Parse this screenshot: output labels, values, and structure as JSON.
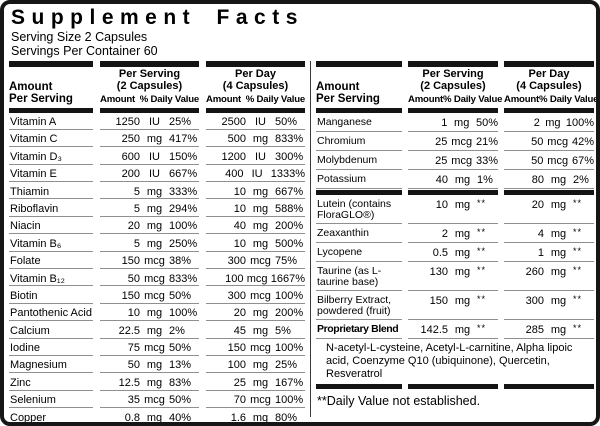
{
  "title": "Supplement Facts",
  "serving_size": "Serving Size 2 Capsules",
  "servings_per_container": "Servings Per Container 60",
  "colors": {
    "background": "#ffffff",
    "text": "#000000",
    "header_bar": "#141414",
    "row_separator": "#8f8f8f",
    "border": "#161616"
  },
  "headers": {
    "amount": "Amount",
    "per_serving": "Per Serving",
    "serving_capsules": "(2 Capsules)",
    "per_day": "Per Day",
    "day_capsules": "(4 Capsules)",
    "sub_amount": "Amount",
    "sub_daily_value": "% Daily Value"
  },
  "left_table": {
    "rows": [
      {
        "name": "Vitamin A",
        "ps_amount": "1250",
        "ps_unit": "IU",
        "ps_dv": "25%",
        "pd_amount": "2500",
        "pd_unit": "IU",
        "pd_dv": "50%"
      },
      {
        "name": "Vitamin C",
        "ps_amount": "250",
        "ps_unit": "mg",
        "ps_dv": "417%",
        "pd_amount": "500",
        "pd_unit": "mg",
        "pd_dv": "833%"
      },
      {
        "name": "Vitamin D₃",
        "ps_amount": "600",
        "ps_unit": "IU",
        "ps_dv": "150%",
        "pd_amount": "1200",
        "pd_unit": "IU",
        "pd_dv": "300%"
      },
      {
        "name": "Vitamin E",
        "ps_amount": "200",
        "ps_unit": "IU",
        "ps_dv": "667%",
        "pd_amount": "400",
        "pd_unit": "IU",
        "pd_dv": "1333%"
      },
      {
        "name": "Thiamin",
        "ps_amount": "5",
        "ps_unit": "mg",
        "ps_dv": "333%",
        "pd_amount": "10",
        "pd_unit": "mg",
        "pd_dv": "667%"
      },
      {
        "name": "Riboflavin",
        "ps_amount": "5",
        "ps_unit": "mg",
        "ps_dv": "294%",
        "pd_amount": "10",
        "pd_unit": "mg",
        "pd_dv": "588%"
      },
      {
        "name": "Niacin",
        "ps_amount": "20",
        "ps_unit": "mg",
        "ps_dv": "100%",
        "pd_amount": "40",
        "pd_unit": "mg",
        "pd_dv": "200%"
      },
      {
        "name": "Vitamin B₆",
        "ps_amount": "5",
        "ps_unit": "mg",
        "ps_dv": "250%",
        "pd_amount": "10",
        "pd_unit": "mg",
        "pd_dv": "500%"
      },
      {
        "name": "Folate",
        "ps_amount": "150",
        "ps_unit": "mcg",
        "ps_dv": "38%",
        "pd_amount": "300",
        "pd_unit": "mcg",
        "pd_dv": "75%"
      },
      {
        "name": "Vitamin B₁₂",
        "ps_amount": "50",
        "ps_unit": "mcg",
        "ps_dv": "833%",
        "pd_amount": "100",
        "pd_unit": "mcg",
        "pd_dv": "1667%"
      },
      {
        "name": "Biotin",
        "ps_amount": "150",
        "ps_unit": "mcg",
        "ps_dv": "50%",
        "pd_amount": "300",
        "pd_unit": "mcg",
        "pd_dv": "100%"
      },
      {
        "name": "Pantothenic Acid",
        "ps_amount": "10",
        "ps_unit": "mg",
        "ps_dv": "100%",
        "pd_amount": "20",
        "pd_unit": "mg",
        "pd_dv": "200%"
      },
      {
        "name": "Calcium",
        "ps_amount": "22.5",
        "ps_unit": "mg",
        "ps_dv": "2%",
        "pd_amount": "45",
        "pd_unit": "mg",
        "pd_dv": "5%"
      },
      {
        "name": "Iodine",
        "ps_amount": "75",
        "ps_unit": "mcg",
        "ps_dv": "50%",
        "pd_amount": "150",
        "pd_unit": "mcg",
        "pd_dv": "100%"
      },
      {
        "name": "Magnesium",
        "ps_amount": "50",
        "ps_unit": "mg",
        "ps_dv": "13%",
        "pd_amount": "100",
        "pd_unit": "mg",
        "pd_dv": "25%"
      },
      {
        "name": "Zinc",
        "ps_amount": "12.5",
        "ps_unit": "mg",
        "ps_dv": "83%",
        "pd_amount": "25",
        "pd_unit": "mg",
        "pd_dv": "167%"
      },
      {
        "name": "Selenium",
        "ps_amount": "35",
        "ps_unit": "mcg",
        "ps_dv": "50%",
        "pd_amount": "70",
        "pd_unit": "mcg",
        "pd_dv": "100%"
      },
      {
        "name": "Copper",
        "ps_amount": "0.8",
        "ps_unit": "mg",
        "ps_dv": "40%",
        "pd_amount": "1.6",
        "pd_unit": "mg",
        "pd_dv": "80%"
      }
    ]
  },
  "right_table": {
    "mineral_rows": [
      {
        "name": "Manganese",
        "ps_amount": "1",
        "ps_unit": "mg",
        "ps_dv": "50%",
        "pd_amount": "2",
        "pd_unit": "mg",
        "pd_dv": "100%"
      },
      {
        "name": "Chromium",
        "ps_amount": "25",
        "ps_unit": "mcg",
        "ps_dv": "21%",
        "pd_amount": "50",
        "pd_unit": "mcg",
        "pd_dv": "42%"
      },
      {
        "name": "Molybdenum",
        "ps_amount": "25",
        "ps_unit": "mcg",
        "ps_dv": "33%",
        "pd_amount": "50",
        "pd_unit": "mcg",
        "pd_dv": "67%"
      },
      {
        "name": "Potassium",
        "ps_amount": "40",
        "ps_unit": "mg",
        "ps_dv": "1%",
        "pd_amount": "80",
        "pd_unit": "mg",
        "pd_dv": "2%"
      }
    ],
    "other_rows": [
      {
        "name": "Lutein (contains FloraGLO®)",
        "ps_amount": "10",
        "ps_unit": "mg",
        "ps_dv": "**",
        "pd_amount": "20",
        "pd_unit": "mg",
        "pd_dv": "**"
      },
      {
        "name": "Zeaxanthin",
        "ps_amount": "2",
        "ps_unit": "mg",
        "ps_dv": "**",
        "pd_amount": "4",
        "pd_unit": "mg",
        "pd_dv": "**"
      },
      {
        "name": "Lycopene",
        "ps_amount": "0.5",
        "ps_unit": "mg",
        "ps_dv": "**",
        "pd_amount": "1",
        "pd_unit": "mg",
        "pd_dv": "**"
      },
      {
        "name": "Taurine (as L-taurine base)",
        "ps_amount": "130",
        "ps_unit": "mg",
        "ps_dv": "**",
        "pd_amount": "260",
        "pd_unit": "mg",
        "pd_dv": "**"
      },
      {
        "name": "Bilberry Extract, powdered (fruit)",
        "ps_amount": "150",
        "ps_unit": "mg",
        "ps_dv": "**",
        "pd_amount": "300",
        "pd_unit": "mg",
        "pd_dv": "**"
      },
      {
        "name": "Proprietary Blend",
        "bold": true,
        "ps_amount": "142.5",
        "ps_unit": "mg",
        "ps_dv": "**",
        "pd_amount": "285",
        "pd_unit": "mg",
        "pd_dv": "**"
      }
    ],
    "blend_ingredients": "N-acetyl-L-cysteine, Acetyl-L-carnitine, Alpha lipoic acid, Coenzyme Q10 (ubiquinone), Quercetin, Resveratrol",
    "footnote": "**Daily Value not established."
  }
}
